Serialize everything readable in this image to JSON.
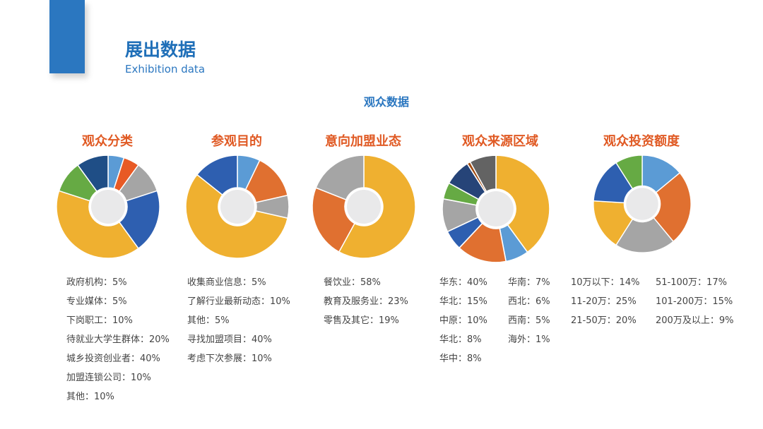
{
  "header": {
    "title_cn": "展出数据",
    "title_en": "Exhibition data"
  },
  "section_title": "观众数据",
  "colors": {
    "accent": "#2b77c0",
    "chart_title": "#e05a24"
  },
  "chart_data": [
    {
      "type": "pie",
      "title": "观众分类",
      "slices": [
        {
          "name": "政府机构",
          "value": 5,
          "color": "#5b9bd5"
        },
        {
          "name": "专业媒体",
          "value": 5,
          "color": "#e85a25"
        },
        {
          "name": "下岗职工",
          "value": 10,
          "color": "#a5a5a5"
        },
        {
          "name": "待就业大学生群体",
          "value": 20,
          "color": "#2e5fb0"
        },
        {
          "name": "城乡投资创业者",
          "value": 40,
          "color": "#efb030"
        },
        {
          "name": "加盟连锁公司",
          "value": 10,
          "color": "#66aa44"
        },
        {
          "name": "其他",
          "value": 10,
          "color": "#1f4e86"
        }
      ],
      "legend": [
        "政府机构：5%",
        "专业媒体：5%",
        "下岗职工：10%",
        "待就业大学生群体：20%",
        "城乡投资创业者：40%",
        "加盟连锁公司：10%",
        "其他：10%"
      ]
    },
    {
      "type": "pie",
      "title": "参观目的",
      "slices": [
        {
          "name": "收集商业信息",
          "value": 5,
          "color": "#5b9bd5"
        },
        {
          "name": "了解行业最新动态",
          "value": 10,
          "color": "#e07030"
        },
        {
          "name": "其他",
          "value": 5,
          "color": "#a5a5a5"
        },
        {
          "name": "寻找加盟项目",
          "value": 40,
          "color": "#efb030"
        },
        {
          "name": "考虑下次参展",
          "value": 10,
          "color": "#2e5fb0"
        }
      ],
      "legend": [
        "收集商业信息：5%",
        "了解行业最新动态：10%",
        "其他：5%",
        "寻找加盟项目：40%",
        "考虑下次参展：10%"
      ]
    },
    {
      "type": "pie",
      "title": "意向加盟业态",
      "slices": [
        {
          "name": "餐饮业",
          "value": 58,
          "color": "#efb030"
        },
        {
          "name": "教育及服务业",
          "value": 23,
          "color": "#e07030"
        },
        {
          "name": "零售及其它",
          "value": 19,
          "color": "#a5a5a5"
        }
      ],
      "legend": [
        "餐饮业：58%",
        "教育及服务业：23%",
        "零售及其它：19%"
      ]
    },
    {
      "type": "pie",
      "title": "观众来源区域",
      "slices": [
        {
          "name": "华东",
          "value": 40,
          "color": "#efb030"
        },
        {
          "name": "华南",
          "value": 7,
          "color": "#5b9bd5"
        },
        {
          "name": "华北",
          "value": 15,
          "color": "#e07030"
        },
        {
          "name": "西北",
          "value": 6,
          "color": "#2e5fb0"
        },
        {
          "name": "中原",
          "value": 10,
          "color": "#a5a5a5"
        },
        {
          "name": "西南",
          "value": 5,
          "color": "#66aa44"
        },
        {
          "name": "华北",
          "value": 8,
          "color": "#264478"
        },
        {
          "name": "海外",
          "value": 1,
          "color": "#9e480e"
        },
        {
          "name": "华中",
          "value": 8,
          "color": "#636363"
        }
      ],
      "legend": [
        "华东：40%",
        "华南：7%",
        "华北：15%",
        "西北：6%",
        "中原：10%",
        "西南：5%",
        "华北：8%",
        "海外：1%",
        "华中：8%"
      ]
    },
    {
      "type": "pie",
      "title": "观众投资额度",
      "slices": [
        {
          "name": "10万以下",
          "value": 14,
          "color": "#5b9bd5"
        },
        {
          "name": "11-20万",
          "value": 25,
          "color": "#e07030"
        },
        {
          "name": "21-50万",
          "value": 20,
          "color": "#a5a5a5"
        },
        {
          "name": "51-100万",
          "value": 17,
          "color": "#efb030"
        },
        {
          "name": "101-200万",
          "value": 15,
          "color": "#2e5fb0"
        },
        {
          "name": "200万及以上",
          "value": 9,
          "color": "#66aa44"
        }
      ],
      "legend": [
        "10万以下：14%",
        "51-100万：17%",
        "11-20万：25%",
        "101-200万：15%",
        "21-50万：20%",
        "200万及以上：9%"
      ]
    }
  ]
}
